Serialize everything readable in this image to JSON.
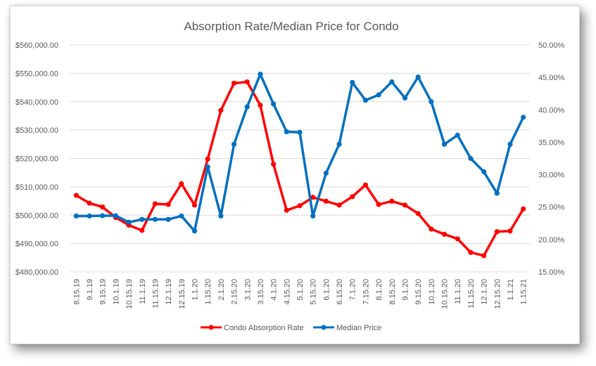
{
  "chart_data": {
    "type": "line",
    "title": "Absorption Rate/Median Price for Condo",
    "categories": [
      "8.15.19",
      "9.1.19",
      "9.15.19",
      "10.1.19",
      "10.15.19",
      "11.1.19",
      "11.15.19",
      "12.1.19",
      "12.15.19",
      "1.1.20",
      "1.15.20",
      "2.1.20",
      "2.15.20",
      "3.1.20",
      "3.15.20",
      "4.1.20",
      "4.15.20",
      "5.1.20",
      "5.15.20",
      "6.1.20",
      "6.15.20",
      "7.1.20",
      "7.15.20",
      "8.1.20",
      "8.15.20",
      "9.1.20",
      "9.15.20",
      "10.1.20",
      "10.15.20",
      "11.1.20",
      "11.15.20",
      "12.1.20",
      "12.15.20",
      "1.1.21",
      "1.15.21"
    ],
    "left_axis": {
      "min": 480000,
      "max": 560000,
      "step": 10000,
      "tick_labels": [
        "$480,000.00",
        "$490,000.00",
        "$500,000.00",
        "$510,000.00",
        "$520,000.00",
        "$530,000.00",
        "$540,000.00",
        "$550,000.00",
        "$560,000.00"
      ]
    },
    "right_axis": {
      "min": 15,
      "max": 50,
      "step": 5,
      "tick_labels": [
        "15.00%",
        "20.00%",
        "25.00%",
        "30.00%",
        "35.00%",
        "40.00%",
        "45.00%",
        "50.00%"
      ]
    },
    "grid": true,
    "legend_position": "bottom",
    "series": [
      {
        "name": "Condo Absorption Rate",
        "axis": "right",
        "color": "#ff0000",
        "values": [
          26.8,
          25.6,
          25.0,
          23.4,
          22.2,
          21.4,
          25.5,
          25.4,
          28.6,
          25.3,
          32.4,
          39.9,
          44.1,
          44.3,
          40.7,
          31.6,
          24.5,
          25.2,
          26.5,
          25.9,
          25.3,
          26.6,
          28.4,
          25.4,
          25.9,
          25.3,
          24.0,
          21.6,
          20.8,
          20.1,
          18.0,
          17.5,
          21.2,
          21.3,
          24.7
        ]
      },
      {
        "name": "Median Price",
        "axis": "left",
        "color": "#0070c0",
        "values": [
          499700,
          499700,
          499800,
          499800,
          497500,
          498500,
          498500,
          498500,
          499700,
          494400,
          517000,
          499700,
          525000,
          538200,
          549700,
          539200,
          529400,
          529200,
          499700,
          514800,
          525000,
          546800,
          540500,
          542400,
          547000,
          541300,
          548700,
          540000,
          525000,
          528200,
          520000,
          515300,
          507700,
          525000,
          534500
        ]
      }
    ]
  }
}
